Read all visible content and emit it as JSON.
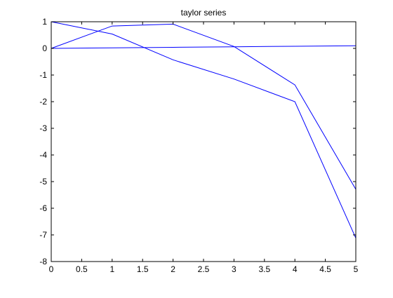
{
  "chart_data": {
    "type": "line",
    "title": "taylor series",
    "xlabel": "",
    "ylabel": "",
    "xlim": [
      0,
      5
    ],
    "ylim": [
      -8,
      1
    ],
    "xticks": [
      0,
      0.5,
      1,
      1.5,
      2,
      2.5,
      3,
      3.5,
      4,
      4.5,
      5
    ],
    "xtick_labels": [
      "0",
      "0.5",
      "1",
      "1.5",
      "2",
      "2.5",
      "3",
      "3.5",
      "4",
      "4.5",
      "5"
    ],
    "yticks": [
      1,
      0,
      -1,
      -2,
      -3,
      -4,
      -5,
      -6,
      -7,
      -8
    ],
    "ytick_labels": [
      "1",
      "0",
      "-1",
      "-2",
      "-3",
      "-4",
      "-5",
      "-6",
      "-7",
      "-8"
    ],
    "grid": false,
    "legend": "none",
    "x": [
      0,
      1,
      2,
      3,
      4,
      5
    ],
    "series": [
      {
        "values": [
          0,
          0.84,
          0.91,
          0.07,
          -1.37,
          -5.29
        ],
        "color": "#0000ff"
      },
      {
        "values": [
          1,
          0.54,
          -0.43,
          -1.15,
          -2.0,
          -7.12
        ],
        "color": "#0000ff"
      },
      {
        "values": [
          0,
          0.02,
          0.04,
          0.06,
          0.08,
          0.1
        ],
        "color": "#0000ff"
      }
    ]
  }
}
